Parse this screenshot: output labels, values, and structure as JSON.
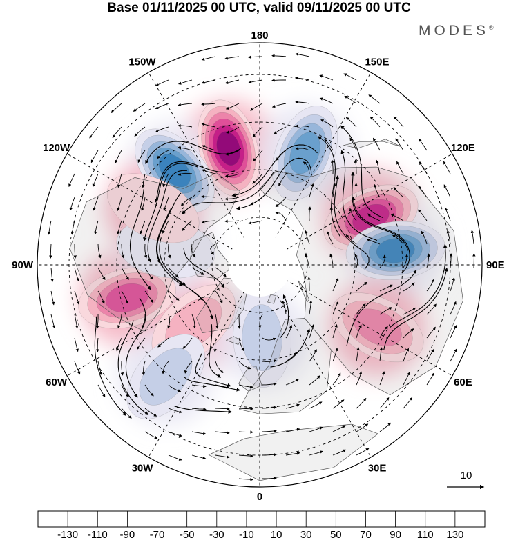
{
  "title": "Base 01/11/2025 00 UTC, valid 09/11/2025 00 UTC",
  "brand": {
    "name": "MODES",
    "mark": "®"
  },
  "longitudes": [
    {
      "text": "180",
      "angle": 180
    },
    {
      "text": "150E",
      "angle": 150
    },
    {
      "text": "120E",
      "angle": 120
    },
    {
      "text": "90E",
      "angle": 90
    },
    {
      "text": "60E",
      "angle": 60
    },
    {
      "text": "30E",
      "angle": 30
    },
    {
      "text": "0",
      "angle": 0
    },
    {
      "text": "30W",
      "angle": -30
    },
    {
      "text": "60W",
      "angle": -60
    },
    {
      "text": "90W",
      "angle": -90
    },
    {
      "text": "120W",
      "angle": -120
    },
    {
      "text": "150W",
      "angle": -150
    }
  ],
  "reference_vector": {
    "label": "10"
  },
  "colorbar": {
    "colors": [
      "#16415f",
      "#1f5f8f",
      "#3b83bd",
      "#6aa0cd",
      "#97b6da",
      "#c5cfe7",
      "#e7e6f3",
      "#ffffff",
      "#f9d8dd",
      "#f5b2c1",
      "#ec84aa",
      "#e04f99",
      "#c51f88",
      "#930a79",
      "#5c0a6b"
    ],
    "ticks": [
      "-130",
      "-110",
      "-90",
      "-70",
      "-50",
      "-30",
      "-10",
      "10",
      "30",
      "50",
      "70",
      "90",
      "110",
      "130"
    ]
  },
  "anomalies": [
    {
      "name": "anomaly-pink-150w",
      "lon": -165,
      "lat": 52,
      "value": 130
    },
    {
      "name": "anomaly-blue-140w",
      "lon": -138,
      "lat": 50,
      "value": -110
    },
    {
      "name": "anomaly-blue-160e",
      "lon": 158,
      "lat": 52,
      "value": -90
    },
    {
      "name": "anomaly-pink-115e",
      "lon": 113,
      "lat": 52,
      "value": 110
    },
    {
      "name": "anomaly-blue-95e",
      "lon": 96,
      "lat": 47,
      "value": -110
    },
    {
      "name": "anomaly-pink-60e",
      "lon": 62,
      "lat": 48,
      "value": 70
    },
    {
      "name": "anomaly-pink-80w",
      "lon": -76,
      "lat": 47,
      "value": 90
    },
    {
      "name": "anomaly-pink-45w",
      "lon": -48,
      "lat": 62,
      "value": 50
    },
    {
      "name": "anomaly-blue-50w",
      "lon": -40,
      "lat": 44,
      "value": -50
    },
    {
      "name": "anomaly-blue-0",
      "lon": 2,
      "lat": 67,
      "value": -50
    },
    {
      "name": "anomaly-blue-100w",
      "lon": -100,
      "lat": 60,
      "value": -30
    },
    {
      "name": "anomaly-pink-120w",
      "lon": -118,
      "lat": 52,
      "value": 30
    }
  ]
}
